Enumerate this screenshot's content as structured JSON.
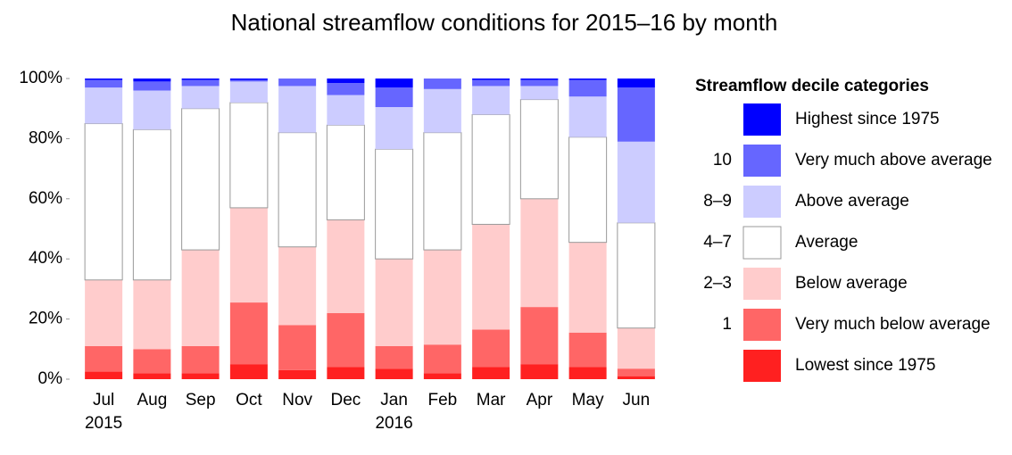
{
  "chart_data": {
    "type": "stacked_bar",
    "title": "National streamflow conditions for 2015–16 by month",
    "categories": [
      "Jul\n2015",
      "Aug",
      "Sep",
      "Oct",
      "Nov",
      "Dec",
      "Jan\n2016",
      "Feb",
      "Mar",
      "Apr",
      "May",
      "Jun"
    ],
    "ylim": [
      0,
      100
    ],
    "yticks": [
      {
        "value": 0,
        "label": "0%"
      },
      {
        "value": 20,
        "label": "20%"
      },
      {
        "value": 40,
        "label": "40%"
      },
      {
        "value": 60,
        "label": "60%"
      },
      {
        "value": 80,
        "label": "80%"
      },
      {
        "value": 100,
        "label": "100%"
      }
    ],
    "grid": false,
    "legend_title": "Streamflow decile categories",
    "legend_position": "right",
    "border_color": "#999999",
    "series": [
      {
        "name": "Lowest since 1975",
        "color": "#ff2020",
        "values": [
          2.5,
          2,
          2,
          5,
          3,
          4,
          3.5,
          2,
          4,
          5,
          4,
          1
        ]
      },
      {
        "name": "Very much below average",
        "decile": "1",
        "color": "#ff6666",
        "values": [
          8.5,
          8,
          9,
          20.5,
          15,
          18,
          7.5,
          9.5,
          12.5,
          19,
          11.5,
          2.5
        ]
      },
      {
        "name": "Below average",
        "decile": "2–3",
        "color": "#ffcccc",
        "values": [
          22,
          23,
          32,
          31.5,
          26,
          31,
          29,
          31.5,
          35,
          36,
          30,
          13.5
        ]
      },
      {
        "name": "Average",
        "decile": "4–7",
        "color": "#ffffff",
        "values": [
          52,
          50,
          47,
          35,
          38,
          31.5,
          36.5,
          39,
          36.5,
          33,
          35,
          35
        ]
      },
      {
        "name": "Above average",
        "decile": "8–9",
        "color": "#ccccff",
        "values": [
          12,
          13,
          7.5,
          7,
          15.5,
          10,
          14,
          14.5,
          9.5,
          4.5,
          13.5,
          27
        ]
      },
      {
        "name": "Very much above average",
        "decile": "10",
        "color": "#6666ff",
        "values": [
          2.5,
          3,
          2,
          0.5,
          2.5,
          4,
          6.5,
          3.5,
          2,
          2,
          5.5,
          18
        ]
      },
      {
        "name": "Highest since 1975",
        "color": "#0000ff",
        "values": [
          0.5,
          1,
          0.5,
          0.5,
          0,
          1.5,
          3,
          0,
          0.5,
          0.5,
          0.5,
          3
        ]
      }
    ]
  }
}
